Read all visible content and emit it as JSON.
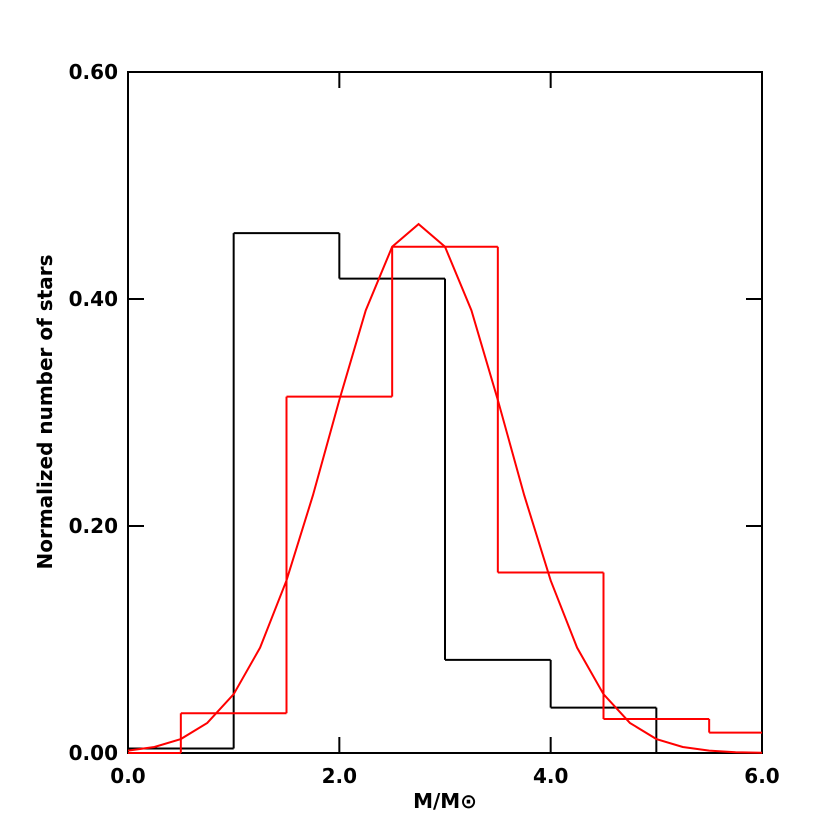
{
  "chart_data": {
    "type": "histogram",
    "xlabel": "M/M⊙",
    "ylabel": "Normalized number of stars",
    "xlim": [
      0,
      6
    ],
    "ylim": [
      0,
      0.6
    ],
    "xticks": [
      {
        "value": 0,
        "label": "0.0"
      },
      {
        "value": 2,
        "label": "2.0"
      },
      {
        "value": 4,
        "label": "4.0"
      },
      {
        "value": 6,
        "label": "6.0"
      }
    ],
    "yticks": [
      {
        "value": 0,
        "label": "0.00"
      },
      {
        "value": 0.2,
        "label": "0.20"
      },
      {
        "value": 0.4,
        "label": "0.40"
      },
      {
        "value": 0.6,
        "label": "0.60"
      }
    ],
    "series": [
      {
        "type": "histogram",
        "color": "#000000",
        "bins": [
          0,
          1,
          2,
          3,
          4,
          5
        ],
        "values": [
          0.004,
          0.458,
          0.418,
          0.082,
          0.04
        ]
      },
      {
        "type": "histogram",
        "color": "#ff0000",
        "bins": [
          0,
          0.5,
          1.5,
          2.5,
          3.5,
          4.5,
          5.5,
          6
        ],
        "values": [
          0,
          0.035,
          0.314,
          0.446,
          0.159,
          0.03,
          0.018
        ]
      },
      {
        "type": "line",
        "color": "#ff0000",
        "x": [
          0,
          0.25,
          0.5,
          0.75,
          1,
          1.25,
          1.5,
          1.75,
          2,
          2.25,
          2.5,
          2.75,
          3,
          3.25,
          3.5,
          3.75,
          4,
          4.25,
          4.5,
          4.75,
          5,
          5.25,
          5.5,
          5.75,
          6
        ],
        "values": [
          0.0021,
          0.0053,
          0.0123,
          0.0265,
          0.0518,
          0.0928,
          0.152,
          0.227,
          0.311,
          0.39,
          0.446,
          0.466,
          0.446,
          0.39,
          0.311,
          0.227,
          0.152,
          0.0928,
          0.0518,
          0.0265,
          0.0123,
          0.0053,
          0.0021,
          0.0007,
          0.0002
        ]
      }
    ]
  }
}
